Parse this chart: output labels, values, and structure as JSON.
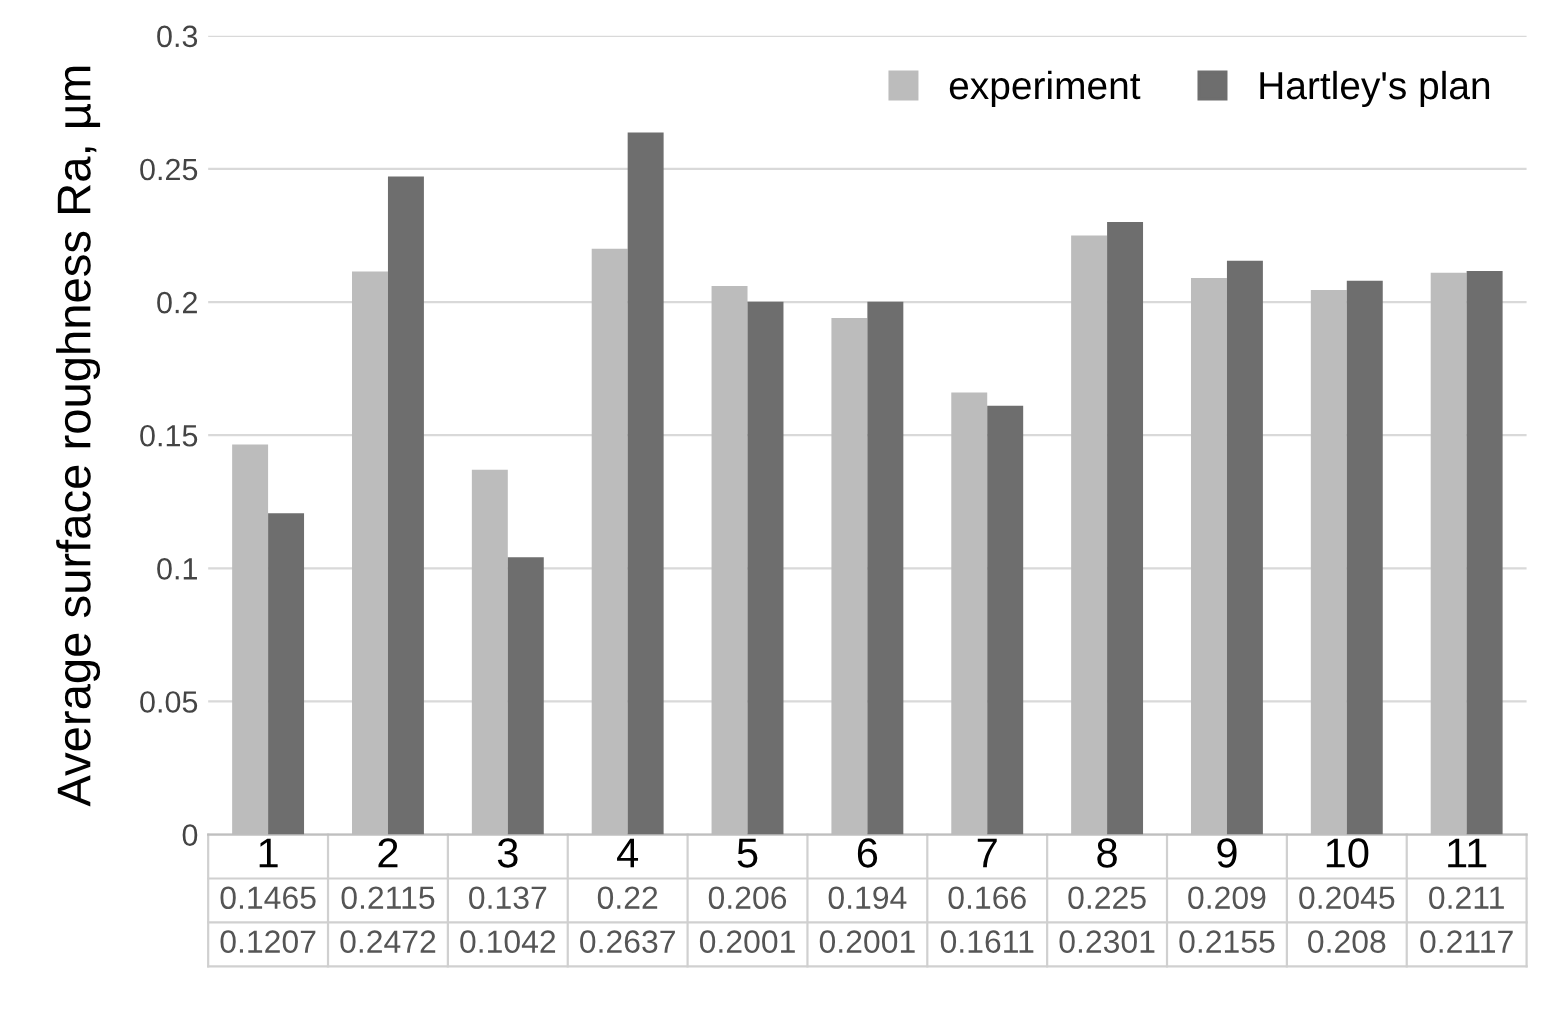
{
  "chart_data": {
    "type": "bar",
    "ylabel": "Average surface roughness Ra, µm",
    "categories": [
      "1",
      "2",
      "3",
      "4",
      "5",
      "6",
      "7",
      "8",
      "9",
      "10",
      "11"
    ],
    "series": [
      {
        "name": "experiment",
        "color": "#bcbcbc",
        "values": [
          0.1465,
          0.2115,
          0.137,
          0.22,
          0.206,
          0.194,
          0.166,
          0.225,
          0.209,
          0.2045,
          0.211
        ]
      },
      {
        "name": "Hartley's plan",
        "color": "#6e6e6e",
        "values": [
          0.1207,
          0.2472,
          0.1042,
          0.2637,
          0.2001,
          0.2001,
          0.1611,
          0.2301,
          0.2155,
          0.208,
          0.2117
        ]
      }
    ],
    "ylim": [
      0,
      0.3
    ],
    "yticks": [
      0,
      0.05,
      0.1,
      0.15,
      0.2,
      0.25,
      0.3
    ],
    "grid": "y",
    "legend": "top right",
    "data_labels": true
  }
}
